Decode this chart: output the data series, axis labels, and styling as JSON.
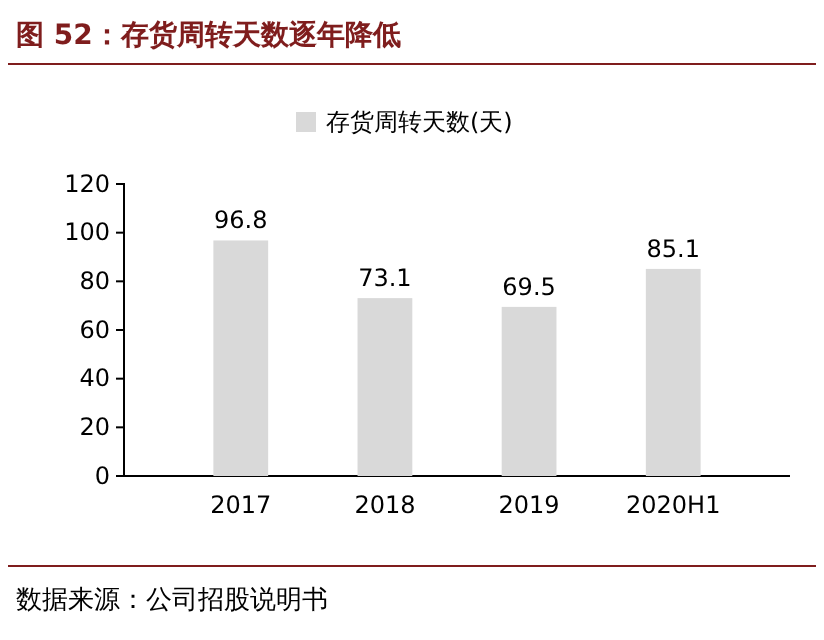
{
  "chart_data": {
    "type": "bar",
    "title": "图 52：存货周转天数逐年降低",
    "categories": [
      "2017",
      "2018",
      "2019",
      "2020H1"
    ],
    "series": [
      {
        "name": "存货周转天数(天)",
        "color": "#d9d9d9",
        "values": [
          96.8,
          73.1,
          69.5,
          85.1
        ]
      }
    ],
    "ylim": [
      0,
      120
    ],
    "yticks": [
      0,
      20,
      40,
      60,
      80,
      100,
      120
    ],
    "grid": false,
    "legend": "top",
    "data_labels": true,
    "annotations": [
      "数据来源：公司招股说明书"
    ]
  }
}
